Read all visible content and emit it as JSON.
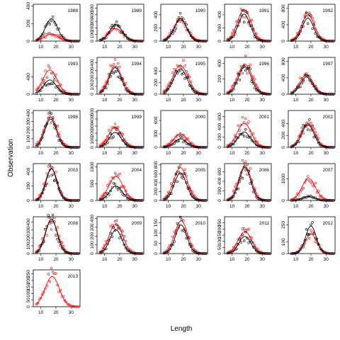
{
  "chart_data": {
    "type": "scatter",
    "xlabel": "Length",
    "ylabel": "Observation",
    "xlim": [
      5,
      36
    ],
    "xticks": [
      10,
      20,
      30
    ],
    "colors": {
      "black_series": "#000000",
      "red_series": "#ff0000"
    },
    "panels": [
      {
        "year": "1988",
        "ymax": 420,
        "yticks": [
          0,
          200,
          400
        ],
        "bpeak": 255,
        "rpeak": 80,
        "mu": 17.0,
        "sig": 4.0
      },
      {
        "year": "1989",
        "ymax": 560,
        "yticks": [
          0,
          100,
          200,
          300,
          400,
          500
        ],
        "bpeak": 250,
        "rpeak": 190,
        "mu": 17.5,
        "sig": 4.2
      },
      {
        "year": "1990",
        "ymax": 560,
        "yticks": [
          0,
          200,
          400
        ],
        "bpeak": 340,
        "rpeak": 320,
        "mu": 18.0,
        "sig": 4.0
      },
      {
        "year": "1991",
        "ymax": 560,
        "yticks": [
          0,
          200,
          400
        ],
        "bpeak": 410,
        "rpeak": 480,
        "mu": 18.0,
        "sig": 4.0
      },
      {
        "year": "1992",
        "ymax": 900,
        "yticks": [
          0,
          400,
          800
        ],
        "bpeak": 560,
        "rpeak": 640,
        "mu": 18.0,
        "sig": 3.8
      },
      {
        "year": "1993",
        "ymax": 850,
        "yticks": [
          0,
          400
        ],
        "bpeak": 330,
        "rpeak": 560,
        "mu": 16.0,
        "sig": 4.2
      },
      {
        "year": "1994",
        "ymax": 470,
        "yticks": [
          0,
          100,
          200,
          300,
          400
        ],
        "bpeak": 340,
        "rpeak": 360,
        "mu": 17.0,
        "sig": 4.0
      },
      {
        "year": "1995",
        "ymax": 640,
        "yticks": [
          0,
          200,
          400
        ],
        "bpeak": 440,
        "rpeak": 500,
        "mu": 18.0,
        "sig": 4.5
      },
      {
        "year": "1996",
        "ymax": 480,
        "yticks": [
          0,
          200,
          400
        ],
        "bpeak": 360,
        "rpeak": 390,
        "mu": 18.5,
        "sig": 4.3
      },
      {
        "year": "1997",
        "ymax": 900,
        "yticks": [
          0,
          400,
          800
        ],
        "bpeak": 420,
        "rpeak": 470,
        "mu": 17.0,
        "sig": 4.0
      },
      {
        "year": "1998",
        "ymax": 430,
        "yticks": [
          0,
          100,
          200,
          300,
          400
        ],
        "bpeak": 330,
        "rpeak": 350,
        "mu": 16.5,
        "sig": 3.8
      },
      {
        "year": "1999",
        "ymax": 520,
        "yticks": [
          0,
          100,
          200,
          300,
          400,
          500
        ],
        "bpeak": 210,
        "rpeak": 280,
        "mu": 17.0,
        "sig": 4.0
      },
      {
        "year": "2000",
        "ymax": 820,
        "yticks": [
          0,
          300,
          600
        ],
        "bpeak": 190,
        "rpeak": 300,
        "mu": 18.0,
        "sig": 4.0
      },
      {
        "year": "2001",
        "ymax": 720,
        "yticks": [
          0,
          200,
          400,
          600
        ],
        "bpeak": 300,
        "rpeak": 470,
        "mu": 18.0,
        "sig": 4.2
      },
      {
        "year": "2002",
        "ymax": 620,
        "yticks": [
          0,
          200,
          400
        ],
        "bpeak": 380,
        "rpeak": 400,
        "mu": 18.0,
        "sig": 4.0
      },
      {
        "year": "2003",
        "ymax": 510,
        "yticks": [
          0,
          200,
          400
        ],
        "bpeak": 440,
        "rpeak": 440,
        "mu": 17.0,
        "sig": 3.5
      },
      {
        "year": "2004",
        "ymax": 1100,
        "yticks": [
          0,
          500,
          1000
        ],
        "bpeak": 430,
        "rpeak": 720,
        "mu": 17.5,
        "sig": 4.2
      },
      {
        "year": "2005",
        "ymax": 830,
        "yticks": [
          0,
          200,
          400,
          600,
          800
        ],
        "bpeak": 620,
        "rpeak": 740,
        "mu": 18.0,
        "sig": 4.0
      },
      {
        "year": "2006",
        "ymax": 770,
        "yticks": [
          0,
          200,
          400,
          600
        ],
        "bpeak": 690,
        "rpeak": 720,
        "mu": 18.5,
        "sig": 3.8
      },
      {
        "year": "2007",
        "ymax": 1700,
        "yticks": [
          0,
          1000
        ],
        "bpeak": 180,
        "rpeak": 1020,
        "mu": 18.5,
        "sig": 4.0
      },
      {
        "year": "2008",
        "ymax": 470,
        "yticks": [
          0,
          100,
          200,
          300,
          400
        ],
        "bpeak": 440,
        "rpeak": 420,
        "mu": 17.0,
        "sig": 3.8
      },
      {
        "year": "2009",
        "ymax": 420,
        "yticks": [
          0,
          100,
          200,
          300,
          400
        ],
        "bpeak": 270,
        "rpeak": 340,
        "mu": 17.5,
        "sig": 4.0
      },
      {
        "year": "2010",
        "ymax": 180,
        "yticks": [
          0,
          50,
          100,
          150
        ],
        "bpeak": 140,
        "rpeak": 160,
        "mu": 18.5,
        "sig": 3.8
      },
      {
        "year": "2011",
        "ymax": 300,
        "yticks": [
          0,
          50,
          100,
          150,
          200,
          250
        ],
        "bpeak": 140,
        "rpeak": 180,
        "mu": 18.5,
        "sig": 4.0
      },
      {
        "year": "2012",
        "ymax": 320,
        "yticks": [
          0,
          100,
          250
        ],
        "bpeak": 240,
        "rpeak": 170,
        "mu": 20.0,
        "sig": 3.5
      },
      {
        "year": "2013",
        "ymax": 280,
        "yticks": [
          0,
          50,
          100,
          150,
          200,
          250
        ],
        "bpeak": 0,
        "rpeak": 230,
        "mu": 17.5,
        "sig": 4.2
      }
    ]
  }
}
